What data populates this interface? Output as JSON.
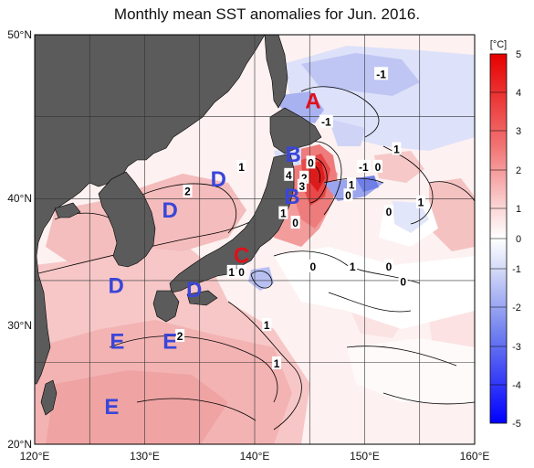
{
  "title": "Monthly mean SST anomalies for Jun. 2016.",
  "axes": {
    "lon_ticks": [
      "120°E",
      "130°E",
      "140°E",
      "150°E",
      "160°E"
    ],
    "lat_ticks": [
      "50°N",
      "40°N",
      "30°N",
      "20°N"
    ],
    "lon_range": [
      120,
      160
    ],
    "lat_range": [
      20,
      50
    ]
  },
  "colorbar": {
    "unit": "[°C]",
    "ticks": [
      "5",
      "4",
      "3",
      "2",
      "1",
      "0",
      "-1",
      "-2",
      "-3",
      "-4",
      "-5"
    ]
  },
  "colors": {
    "land": "#5b5b5b",
    "border": "#000000",
    "region_red": "#e0101a",
    "region_blue": "#3a46d8",
    "warm_max": "#e60000",
    "cold_max": "#0000ff"
  },
  "region_labels": [
    {
      "text": "A",
      "lon": 145.3,
      "lat": 45.2,
      "color": "red"
    },
    {
      "text": "B",
      "lon": 143.5,
      "lat": 41.3,
      "color": "blue"
    },
    {
      "text": "B",
      "lon": 143.4,
      "lat": 38.2,
      "color": "blue"
    },
    {
      "text": "C",
      "lon": 138.8,
      "lat": 33.9,
      "color": "red"
    },
    {
      "text": "D",
      "lon": 136.7,
      "lat": 39.5,
      "color": "blue"
    },
    {
      "text": "D",
      "lon": 132.3,
      "lat": 37.2,
      "color": "blue"
    },
    {
      "text": "D",
      "lon": 127.4,
      "lat": 31.7,
      "color": "blue"
    },
    {
      "text": "D",
      "lon": 134.5,
      "lat": 31.4,
      "color": "blue"
    },
    {
      "text": "E",
      "lon": 127.5,
      "lat": 27.6,
      "color": "blue"
    },
    {
      "text": "E",
      "lon": 132.3,
      "lat": 27.6,
      "color": "blue"
    },
    {
      "text": "E",
      "lon": 127.0,
      "lat": 22.8,
      "color": "blue"
    }
  ],
  "contour_labels": [
    {
      "text": "-1",
      "lon": 151.5,
      "lat": 47.1
    },
    {
      "text": "-1",
      "lon": 146.5,
      "lat": 43.6
    },
    {
      "text": "1",
      "lon": 152.9,
      "lat": 41.6
    },
    {
      "text": "-1",
      "lon": 149.9,
      "lat": 40.3
    },
    {
      "text": "0",
      "lon": 151.2,
      "lat": 40.3
    },
    {
      "text": "1",
      "lon": 138.8,
      "lat": 40.3
    },
    {
      "text": "4",
      "lon": 143.1,
      "lat": 39.7
    },
    {
      "text": "2",
      "lon": 144.5,
      "lat": 39.5
    },
    {
      "text": "3",
      "lon": 144.3,
      "lat": 38.9
    },
    {
      "text": "1",
      "lon": 148.8,
      "lat": 39.0
    },
    {
      "text": "0",
      "lon": 148.5,
      "lat": 38.2
    },
    {
      "text": "2",
      "lon": 133.9,
      "lat": 38.5
    },
    {
      "text": "0",
      "lon": 145.1,
      "lat": 40.6
    },
    {
      "text": "1",
      "lon": 155.1,
      "lat": 37.7
    },
    {
      "text": "0",
      "lon": 152.2,
      "lat": 37.0
    },
    {
      "text": "1",
      "lon": 142.6,
      "lat": 36.9
    },
    {
      "text": "0",
      "lon": 143.7,
      "lat": 36.2
    },
    {
      "text": "0",
      "lon": 145.3,
      "lat": 33.0
    },
    {
      "text": "1",
      "lon": 148.9,
      "lat": 33.0
    },
    {
      "text": "0",
      "lon": 152.2,
      "lat": 33.0
    },
    {
      "text": "0",
      "lon": 153.5,
      "lat": 31.9
    },
    {
      "text": "1",
      "lon": 137.9,
      "lat": 32.6
    },
    {
      "text": "0",
      "lon": 138.8,
      "lat": 32.6
    },
    {
      "text": "2",
      "lon": 133.2,
      "lat": 27.9
    },
    {
      "text": "1",
      "lon": 141.1,
      "lat": 28.7
    },
    {
      "text": "1",
      "lon": 142.0,
      "lat": 25.9
    }
  ]
}
